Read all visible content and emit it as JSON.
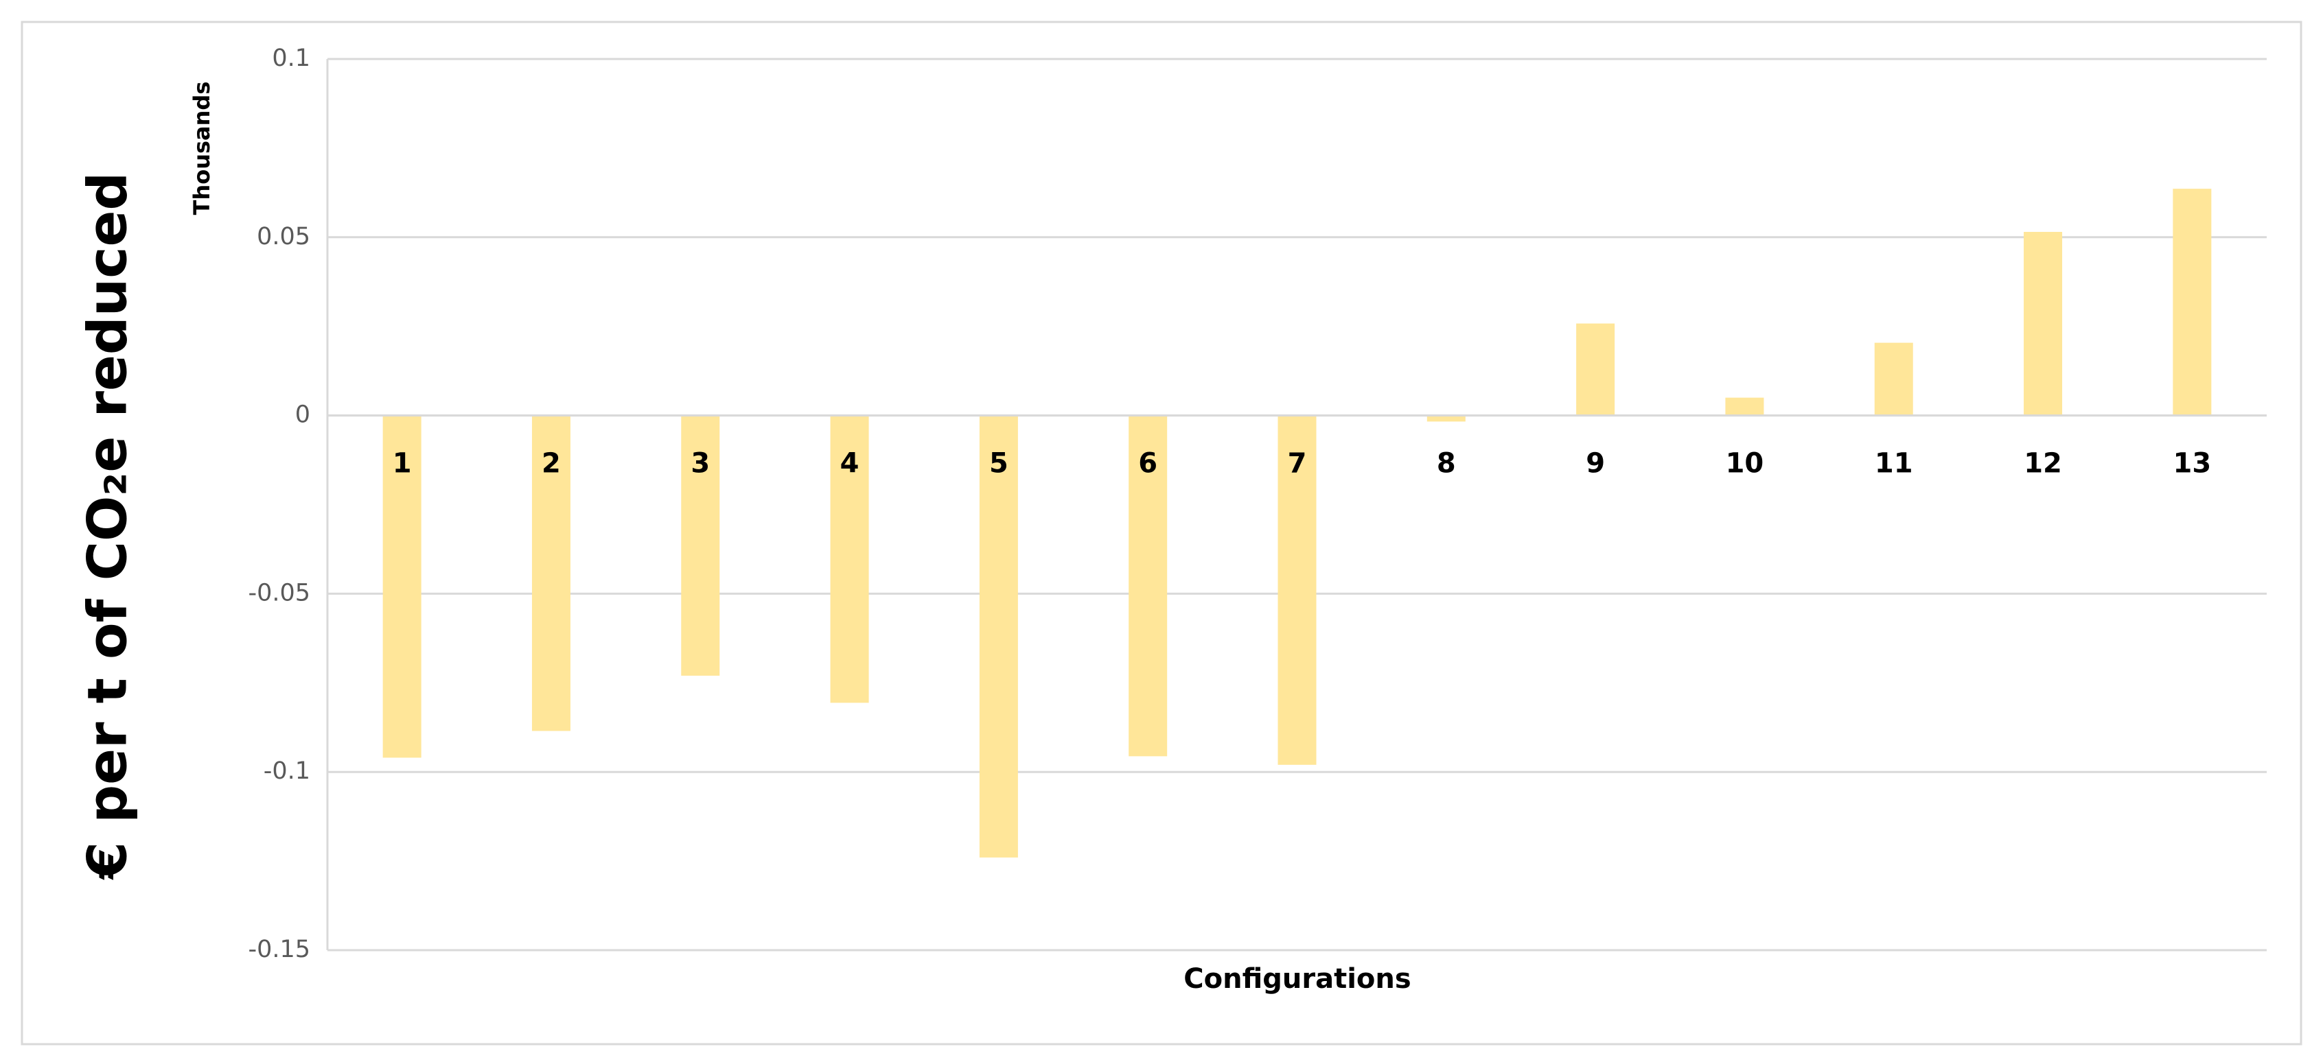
{
  "chart_data": {
    "type": "bar",
    "y_label": "€ per  t of CO₂e reduced",
    "display_units": "Thousands",
    "x_label": "Configurations",
    "categories": [
      "1",
      "2",
      "3",
      "4",
      "5",
      "6",
      "7",
      "8",
      "9",
      "10",
      "11",
      "12",
      "13"
    ],
    "values": [
      -0.096,
      -0.0885,
      -0.073,
      -0.0806,
      -0.124,
      -0.0956,
      -0.098,
      -0.0017,
      0.0258,
      0.005,
      0.0204,
      0.0515,
      0.0636
    ],
    "color": "#ffe699",
    "ylim": [
      -0.15,
      0.1
    ],
    "yticks": [
      -0.15,
      -0.1,
      -0.05,
      0,
      0.05,
      0.1
    ],
    "grid": true
  }
}
